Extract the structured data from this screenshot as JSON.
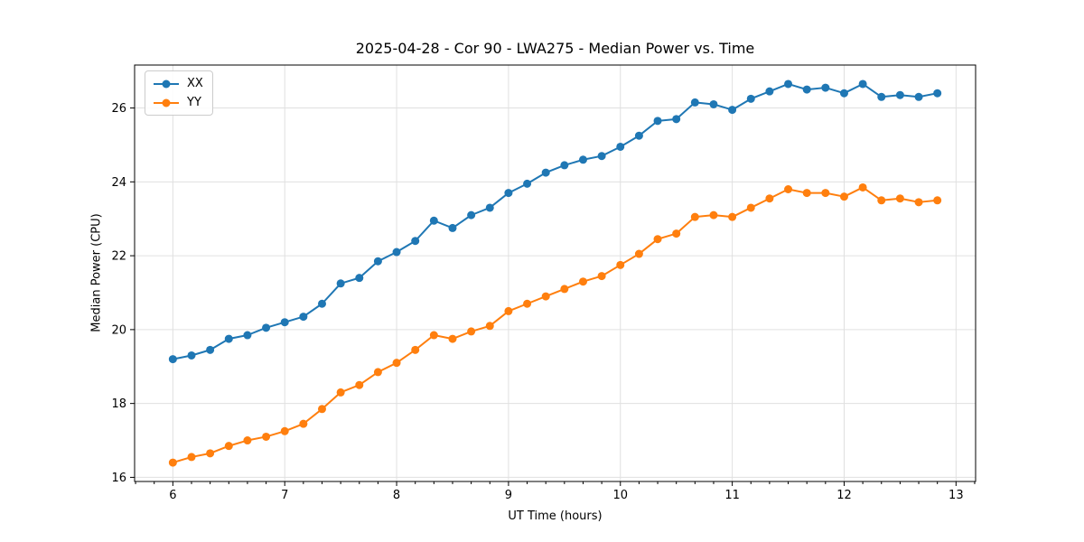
{
  "colors": {
    "series_xx": "#1f77b4",
    "series_yy": "#ff7f0e",
    "grid": "#e0e0e0",
    "spine": "#000000",
    "text": "#000000",
    "legend_border": "#cccccc",
    "background": "#ffffff"
  },
  "chart_data": {
    "type": "line",
    "title": "2025-04-28 - Cor 90 - LWA275 - Median Power vs. Time",
    "xlabel": "UT Time (hours)",
    "ylabel": "Median Power (CPU)",
    "xlim": [
      5.658,
      13.175
    ],
    "ylim": [
      15.888,
      27.163
    ],
    "x_ticks": [
      6,
      7,
      8,
      9,
      10,
      11,
      12,
      13
    ],
    "y_ticks": [
      16,
      18,
      20,
      22,
      24,
      26
    ],
    "x_minor_interval": 0.16667,
    "grid": true,
    "legend_position": "upper-left",
    "marker": "circle",
    "x": [
      6.0,
      6.1667,
      6.3333,
      6.5,
      6.6667,
      6.8333,
      7.0,
      7.1667,
      7.3333,
      7.5,
      7.6667,
      7.8333,
      8.0,
      8.1667,
      8.3333,
      8.5,
      8.6667,
      8.8333,
      9.0,
      9.1667,
      9.3333,
      9.5,
      9.6667,
      9.8333,
      10.0,
      10.1667,
      10.3333,
      10.5,
      10.6667,
      10.8333,
      11.0,
      11.1667,
      11.3333,
      11.5,
      11.6667,
      11.8333,
      12.0,
      12.1667,
      12.3333,
      12.5,
      12.6667,
      12.8333
    ],
    "series": [
      {
        "name": "XX",
        "color": "#1f77b4",
        "values": [
          19.2,
          19.3,
          19.45,
          19.75,
          19.85,
          20.05,
          20.2,
          20.35,
          20.7,
          21.25,
          21.4,
          21.85,
          22.1,
          22.4,
          22.95,
          22.75,
          23.1,
          23.3,
          23.7,
          23.95,
          24.25,
          24.45,
          24.6,
          24.7,
          24.95,
          25.25,
          25.65,
          25.7,
          26.15,
          26.1,
          25.95,
          26.25,
          26.45,
          26.65,
          26.5,
          26.55,
          26.4,
          26.65,
          26.3,
          26.35,
          26.3,
          26.4
        ]
      },
      {
        "name": "YY",
        "color": "#ff7f0e",
        "values": [
          16.4,
          16.55,
          16.65,
          16.85,
          17.0,
          17.1,
          17.25,
          17.45,
          17.85,
          18.3,
          18.5,
          18.85,
          19.1,
          19.45,
          19.85,
          19.75,
          19.95,
          20.1,
          20.5,
          20.7,
          20.9,
          21.1,
          21.3,
          21.45,
          21.75,
          22.05,
          22.45,
          22.6,
          23.05,
          23.1,
          23.05,
          23.3,
          23.55,
          23.8,
          23.7,
          23.7,
          23.6,
          23.85,
          23.5,
          23.55,
          23.45,
          23.5
        ]
      }
    ]
  }
}
